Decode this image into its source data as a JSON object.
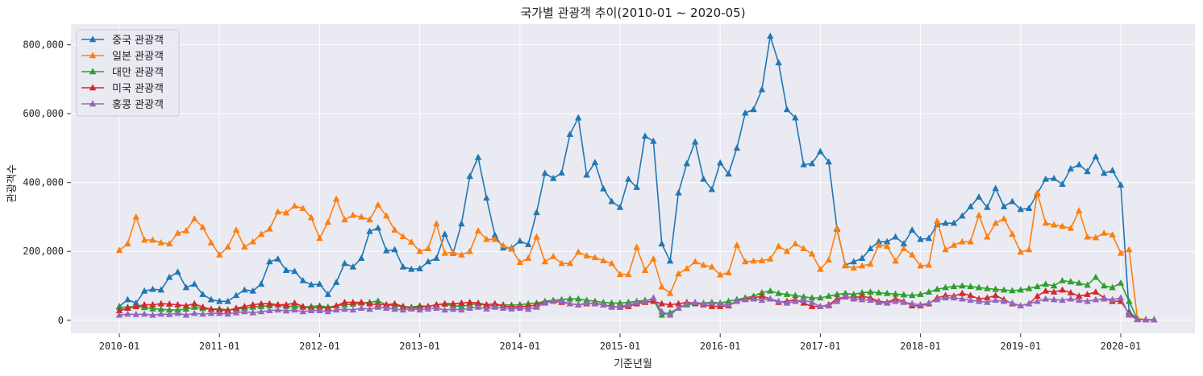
{
  "chart_data": {
    "type": "line",
    "title": "국가별 관광객 추이(2010-01 ~ 2020-05)",
    "xlabel": "기준년월",
    "ylabel": "관광객수",
    "x_start": "2010-01",
    "x_end": "2020-05",
    "xticks": [
      "2010-01",
      "2011-01",
      "2012-01",
      "2013-01",
      "2014-01",
      "2015-01",
      "2016-01",
      "2017-01",
      "2018-01",
      "2019-01",
      "2020-01"
    ],
    "yticks": [
      0,
      200000,
      400000,
      600000,
      800000
    ],
    "ytick_labels": [
      "0",
      "200,000",
      "400,000",
      "600,000",
      "800,000"
    ],
    "ylim": [
      -38000,
      860000
    ],
    "grid": true,
    "legend_position": "top-left",
    "marker": "triangle-up",
    "series": [
      {
        "name": "중국 관광객",
        "color": "#1f77b4",
        "values": [
          40000,
          60000,
          50000,
          85000,
          90000,
          88000,
          125000,
          140000,
          95000,
          105000,
          75000,
          60000,
          55000,
          55000,
          72000,
          88000,
          85000,
          105000,
          170000,
          178000,
          145000,
          142000,
          115000,
          103000,
          105000,
          75000,
          110000,
          165000,
          155000,
          180000,
          258000,
          268000,
          202000,
          205000,
          155000,
          148000,
          150000,
          170000,
          180000,
          250000,
          195000,
          280000,
          418000,
          473000,
          355000,
          247000,
          210000,
          210000,
          230000,
          220000,
          313000,
          427000,
          412000,
          428000,
          540000,
          588000,
          422000,
          458000,
          382000,
          345000,
          328000,
          410000,
          386000,
          535000,
          520000,
          222000,
          172000,
          370000,
          455000,
          518000,
          410000,
          380000,
          457000,
          425000,
          500000,
          602000,
          612000,
          670000,
          825000,
          748000,
          612000,
          588000,
          452000,
          455000,
          490000,
          460000,
          265000,
          160000,
          170000,
          180000,
          208000,
          228000,
          228000,
          242000,
          222000,
          262000,
          235000,
          238000,
          278000,
          282000,
          282000,
          303000,
          330000,
          358000,
          328000,
          383000,
          330000,
          345000,
          322000,
          325000,
          368000,
          410000,
          412000,
          395000,
          440000,
          452000,
          432000,
          475000,
          427000,
          435000,
          393000,
          25000,
          3000,
          2000,
          2000
        ]
      },
      {
        "name": "일본 관광객",
        "color": "#ff7f0e",
        "values": [
          203000,
          222000,
          300000,
          233000,
          233000,
          225000,
          222000,
          253000,
          260000,
          295000,
          270000,
          225000,
          190000,
          213000,
          262000,
          213000,
          228000,
          250000,
          265000,
          315000,
          312000,
          332000,
          325000,
          298000,
          238000,
          285000,
          352000,
          292000,
          305000,
          300000,
          292000,
          335000,
          303000,
          262000,
          243000,
          227000,
          200000,
          208000,
          280000,
          195000,
          197000,
          190000,
          200000,
          260000,
          235000,
          235000,
          217000,
          207000,
          168000,
          180000,
          242000,
          170000,
          185000,
          165000,
          165000,
          198000,
          187000,
          182000,
          173000,
          165000,
          133000,
          133000,
          212000,
          145000,
          178000,
          97000,
          78000,
          135000,
          150000,
          170000,
          160000,
          155000,
          132000,
          138000,
          218000,
          170000,
          172000,
          173000,
          178000,
          215000,
          200000,
          222000,
          208000,
          193000,
          148000,
          175000,
          268000,
          158000,
          152000,
          158000,
          163000,
          218000,
          215000,
          172000,
          208000,
          190000,
          158000,
          160000,
          288000,
          205000,
          218000,
          228000,
          228000,
          305000,
          242000,
          282000,
          295000,
          250000,
          198000,
          205000,
          370000,
          282000,
          277000,
          273000,
          267000,
          318000,
          242000,
          240000,
          253000,
          248000,
          195000,
          205000,
          5000,
          2000,
          1000
        ]
      },
      {
        "name": "대만 관광객",
        "color": "#2ca02c",
        "values": [
          38000,
          38000,
          40000,
          37000,
          33000,
          32000,
          30000,
          30000,
          32000,
          38000,
          34000,
          32000,
          33000,
          30000,
          32000,
          35000,
          38000,
          40000,
          42000,
          45000,
          40000,
          40000,
          38000,
          40000,
          42000,
          38000,
          42000,
          45000,
          47000,
          50000,
          52000,
          56000,
          45000,
          42000,
          40000,
          38000,
          42000,
          40000,
          45000,
          47000,
          42000,
          40000,
          45000,
          48000,
          43000,
          42000,
          45000,
          44000,
          45000,
          48000,
          50000,
          55000,
          58000,
          60000,
          62000,
          62000,
          58000,
          55000,
          52000,
          50000,
          50000,
          52000,
          55000,
          58000,
          60000,
          15000,
          22000,
          35000,
          45000,
          48000,
          50000,
          52000,
          50000,
          55000,
          60000,
          65000,
          70000,
          80000,
          85000,
          78000,
          75000,
          72000,
          68000,
          65000,
          65000,
          70000,
          75000,
          78000,
          75000,
          80000,
          82000,
          80000,
          78000,
          76000,
          74000,
          72000,
          75000,
          82000,
          90000,
          95000,
          98000,
          100000,
          98000,
          95000,
          92000,
          90000,
          88000,
          86000,
          88000,
          92000,
          98000,
          105000,
          100000,
          115000,
          112000,
          108000,
          102000,
          125000,
          100000,
          95000,
          108000,
          55000,
          3000,
          1000,
          1000
        ]
      },
      {
        "name": "미국 관광객",
        "color": "#d62728",
        "values": [
          28000,
          35000,
          40000,
          45000,
          45000,
          48000,
          47000,
          45000,
          42000,
          48000,
          38000,
          32000,
          30000,
          28000,
          35000,
          40000,
          45000,
          48000,
          48000,
          45000,
          45000,
          50000,
          40000,
          35000,
          38000,
          35000,
          42000,
          52000,
          52000,
          52000,
          48000,
          45000,
          45000,
          48000,
          40000,
          35000,
          38000,
          40000,
          45000,
          48000,
          48000,
          50000,
          52000,
          50000,
          45000,
          48000,
          42000,
          38000,
          40000,
          40000,
          45000,
          52000,
          55000,
          52000,
          48000,
          45000,
          48000,
          50000,
          45000,
          40000,
          38000,
          40000,
          48000,
          52000,
          55000,
          48000,
          45000,
          48000,
          52000,
          50000,
          45000,
          40000,
          40000,
          42000,
          55000,
          62000,
          65000,
          70000,
          62000,
          52000,
          55000,
          60000,
          50000,
          40000,
          40000,
          45000,
          62000,
          68000,
          65000,
          70000,
          65000,
          55000,
          52000,
          62000,
          55000,
          42000,
          42000,
          48000,
          65000,
          72000,
          70000,
          78000,
          72000,
          62000,
          65000,
          72000,
          60000,
          48000,
          42000,
          48000,
          70000,
          85000,
          82000,
          88000,
          80000,
          70000,
          75000,
          82000,
          65000,
          55000,
          55000,
          20000,
          2000,
          1000,
          1000
        ]
      },
      {
        "name": "홍콩 관광객",
        "color": "#9467bd",
        "values": [
          15000,
          18000,
          17000,
          18000,
          15000,
          18000,
          17000,
          20000,
          15000,
          20000,
          18000,
          20000,
          20000,
          18000,
          22000,
          25000,
          22000,
          25000,
          28000,
          30000,
          27000,
          30000,
          25000,
          28000,
          28000,
          25000,
          30000,
          32000,
          30000,
          35000,
          32000,
          38000,
          35000,
          32000,
          30000,
          33000,
          30000,
          33000,
          35000,
          30000,
          32000,
          30000,
          35000,
          38000,
          33000,
          38000,
          35000,
          33000,
          35000,
          32000,
          38000,
          50000,
          55000,
          55000,
          48000,
          45000,
          50000,
          48000,
          45000,
          38000,
          40000,
          45000,
          52000,
          55000,
          65000,
          25000,
          15000,
          35000,
          48000,
          52000,
          48000,
          50000,
          48000,
          45000,
          55000,
          60000,
          62000,
          58000,
          62000,
          55000,
          50000,
          55000,
          58000,
          52000,
          40000,
          42000,
          55000,
          70000,
          62000,
          60000,
          58000,
          52000,
          50000,
          55000,
          52000,
          48000,
          45000,
          50000,
          60000,
          65000,
          65000,
          62000,
          58000,
          55000,
          52000,
          58000,
          55000,
          50000,
          42000,
          48000,
          55000,
          62000,
          60000,
          58000,
          62000,
          58000,
          55000,
          60000,
          62000,
          60000,
          65000,
          15000,
          2000,
          1000,
          1000
        ]
      }
    ]
  }
}
